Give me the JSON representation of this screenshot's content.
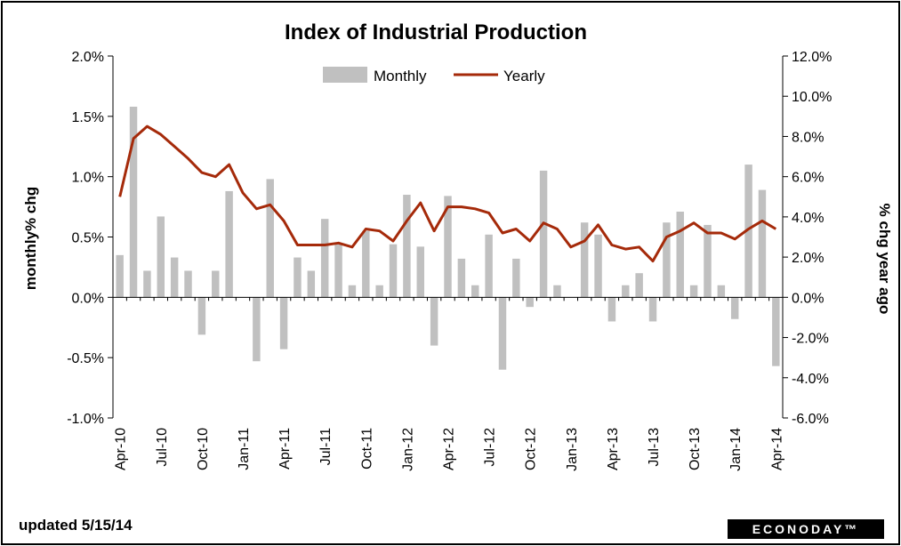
{
  "chart_data": {
    "type": "bar+line",
    "title": "Index of Industrial Production",
    "ylabel_left": "monthly% chg",
    "ylabel_right": "% chg year ago",
    "left_axis": {
      "min": -1.0,
      "max": 2.0,
      "ticks": [
        -1.0,
        -0.5,
        0.0,
        0.5,
        1.0,
        1.5,
        2.0
      ],
      "tick_labels": [
        "-1.0%",
        "-0.5%",
        "0.0%",
        "0.5%",
        "1.0%",
        "1.5%",
        "2.0%"
      ]
    },
    "right_axis": {
      "min": -6.0,
      "max": 12.0,
      "ticks": [
        -6,
        -4,
        -2,
        0,
        2,
        4,
        6,
        8,
        10,
        12
      ],
      "tick_labels": [
        "-6.0%",
        "-4.0%",
        "-2.0%",
        "0.0%",
        "2.0%",
        "4.0%",
        "6.0%",
        "8.0%",
        "10.0%",
        "12.0%"
      ]
    },
    "x_tick_labels": [
      "Apr-10",
      "Jul-10",
      "Oct-10",
      "Jan-11",
      "Apr-11",
      "Jul-11",
      "Oct-11",
      "Jan-12",
      "Apr-12",
      "Jul-12",
      "Oct-12",
      "Jan-13",
      "Apr-13",
      "Jul-13",
      "Oct-13",
      "Jan-14",
      "Apr-14"
    ],
    "months": [
      "Apr-10",
      "May-10",
      "Jun-10",
      "Jul-10",
      "Aug-10",
      "Sep-10",
      "Oct-10",
      "Nov-10",
      "Dec-10",
      "Jan-11",
      "Feb-11",
      "Mar-11",
      "Apr-11",
      "May-11",
      "Jun-11",
      "Jul-11",
      "Aug-11",
      "Sep-11",
      "Oct-11",
      "Nov-11",
      "Dec-11",
      "Jan-12",
      "Feb-12",
      "Mar-12",
      "Apr-12",
      "May-12",
      "Jun-12",
      "Jul-12",
      "Aug-12",
      "Sep-12",
      "Oct-12",
      "Nov-12",
      "Dec-12",
      "Jan-13",
      "Feb-13",
      "Mar-13",
      "Apr-13",
      "May-13",
      "Jun-13",
      "Jul-13",
      "Aug-13",
      "Sep-13",
      "Oct-13",
      "Nov-13",
      "Dec-13",
      "Jan-14",
      "Feb-14",
      "Mar-14",
      "Apr-14"
    ],
    "series": [
      {
        "name": "Monthly",
        "type": "bar",
        "axis": "left",
        "color": "#c0c0c0",
        "values": [
          0.35,
          1.58,
          0.22,
          0.67,
          0.33,
          0.22,
          -0.31,
          0.22,
          0.88,
          0.0,
          -0.53,
          0.98,
          -0.43,
          0.33,
          0.22,
          0.65,
          0.44,
          0.1,
          0.55,
          0.1,
          0.44,
          0.85,
          0.42,
          -0.4,
          0.84,
          0.32,
          0.1,
          0.52,
          -0.6,
          0.32,
          -0.08,
          1.05,
          0.1,
          0.0,
          0.62,
          0.52,
          -0.2,
          0.1,
          0.2,
          -0.2,
          0.62,
          0.71,
          0.1,
          0.6,
          0.1,
          -0.18,
          1.1,
          0.89,
          -0.57
        ]
      },
      {
        "name": "Yearly",
        "type": "line",
        "axis": "right",
        "color": "#a52a0a",
        "values": [
          5.0,
          7.9,
          8.5,
          8.1,
          7.5,
          6.9,
          6.2,
          6.0,
          6.6,
          5.2,
          4.4,
          4.6,
          3.8,
          2.6,
          2.6,
          2.6,
          2.7,
          2.5,
          3.4,
          3.3,
          2.8,
          3.8,
          4.7,
          3.3,
          4.5,
          4.5,
          4.4,
          4.2,
          3.2,
          3.4,
          2.8,
          3.7,
          3.4,
          2.5,
          2.8,
          3.6,
          2.6,
          2.4,
          2.5,
          1.8,
          3.0,
          3.3,
          3.7,
          3.2,
          3.2,
          2.9,
          3.4,
          3.8,
          3.4
        ]
      }
    ],
    "legend": {
      "position": "top-center",
      "entries": [
        "Monthly",
        "Yearly"
      ]
    },
    "grid": false
  },
  "footer": {
    "updated": "updated  5/15/14",
    "brand": "ECONODAY™"
  }
}
